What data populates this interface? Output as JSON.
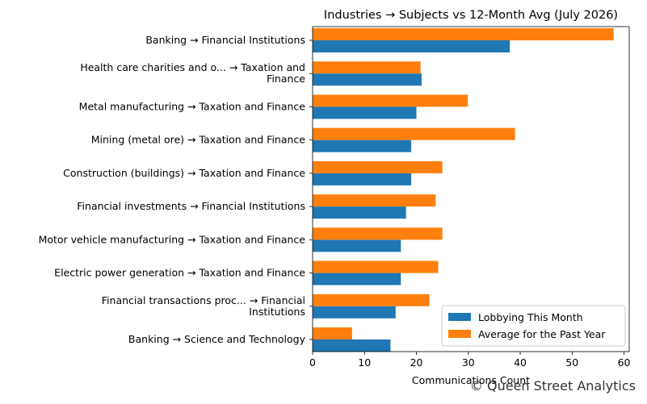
{
  "chart_data": {
    "type": "bar",
    "orientation": "horizontal",
    "title": "Industries → Subjects vs 12-Month Avg (July 2026)",
    "xlabel": "Communications Count",
    "ylabel": "",
    "xlim": [
      0,
      61
    ],
    "xticks": [
      0,
      10,
      20,
      30,
      40,
      50,
      60
    ],
    "grid": false,
    "legend_position": "lower-right",
    "categories": [
      [
        "Banking → Financial Institutions"
      ],
      [
        "Health care charities and o... → Taxation and",
        "Finance"
      ],
      [
        "Metal manufacturing → Taxation and Finance"
      ],
      [
        "Mining (metal ore) → Taxation and Finance"
      ],
      [
        "Construction (buildings) → Taxation and Finance"
      ],
      [
        "Financial investments → Financial Institutions"
      ],
      [
        "Motor vehicle manufacturing → Taxation and Finance"
      ],
      [
        "Electric power generation → Taxation and Finance"
      ],
      [
        "Financial transactions proc... → Financial",
        "Institutions"
      ],
      [
        "Banking → Science and Technology"
      ]
    ],
    "series": [
      {
        "name": "Lobbying This Month",
        "color": "#1f77b4",
        "values": [
          38,
          21,
          20,
          19,
          19,
          18,
          17,
          17,
          16,
          15
        ]
      },
      {
        "name": "Average for the Past Year",
        "color": "#ff7f0e",
        "values": [
          58,
          20.8,
          29.9,
          39,
          25,
          23.7,
          25,
          24.2,
          22.5,
          7.6
        ]
      }
    ]
  },
  "watermark": "© Queen Street Analytics"
}
